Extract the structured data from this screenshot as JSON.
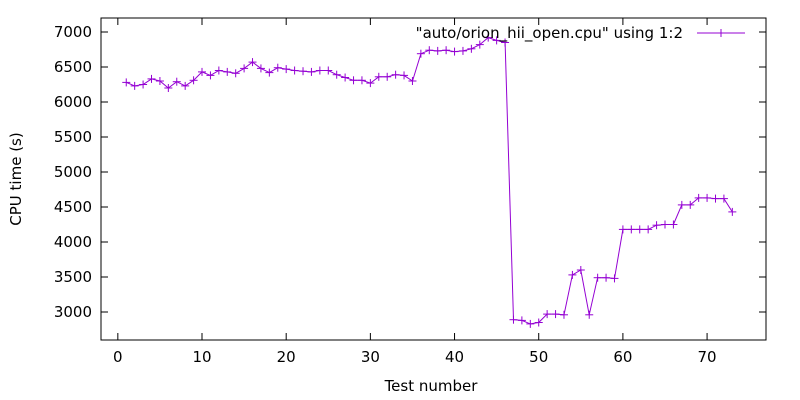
{
  "chart_data": {
    "type": "line",
    "title": "",
    "xlabel": "Test number",
    "ylabel": "CPU time (s)",
    "xlim": [
      -2,
      77
    ],
    "ylim": [
      2600,
      7200
    ],
    "x_ticks": [
      0,
      10,
      20,
      30,
      40,
      50,
      60,
      70
    ],
    "y_ticks": [
      3000,
      3500,
      4000,
      4500,
      5000,
      5500,
      6000,
      6500,
      7000
    ],
    "grid": false,
    "legend_position": "top-right",
    "series": [
      {
        "name": "\"auto/orion_hii_open.cpu\" using 1:2",
        "color": "#9400d3",
        "marker": "plus",
        "x": [
          1,
          2,
          3,
          4,
          5,
          6,
          7,
          8,
          9,
          10,
          11,
          12,
          13,
          14,
          15,
          16,
          17,
          18,
          19,
          20,
          21,
          22,
          23,
          24,
          25,
          26,
          27,
          28,
          29,
          30,
          31,
          32,
          33,
          34,
          35,
          36,
          37,
          38,
          39,
          40,
          41,
          42,
          43,
          44,
          45,
          46,
          47,
          48,
          49,
          50,
          51,
          52,
          53,
          54,
          55,
          56,
          57,
          58,
          59,
          60,
          61,
          62,
          63,
          64,
          65,
          66,
          67,
          68,
          69,
          70,
          71,
          72,
          73
        ],
        "y": [
          6280,
          6230,
          6250,
          6330,
          6300,
          6200,
          6290,
          6230,
          6310,
          6430,
          6380,
          6450,
          6430,
          6410,
          6480,
          6570,
          6480,
          6420,
          6490,
          6470,
          6450,
          6440,
          6430,
          6450,
          6450,
          6390,
          6350,
          6310,
          6310,
          6270,
          6360,
          6360,
          6390,
          6380,
          6300,
          6690,
          6740,
          6730,
          6740,
          6720,
          6730,
          6760,
          6820,
          6920,
          6880,
          6850,
          2890,
          2880,
          2830,
          2850,
          2970,
          2970,
          2960,
          3530,
          3600,
          2960,
          3490,
          3490,
          3480,
          4180,
          4180,
          4180,
          4180,
          4240,
          4250,
          4250,
          4530,
          4530,
          4630,
          4630,
          4620,
          4620,
          4430
        ]
      }
    ]
  }
}
